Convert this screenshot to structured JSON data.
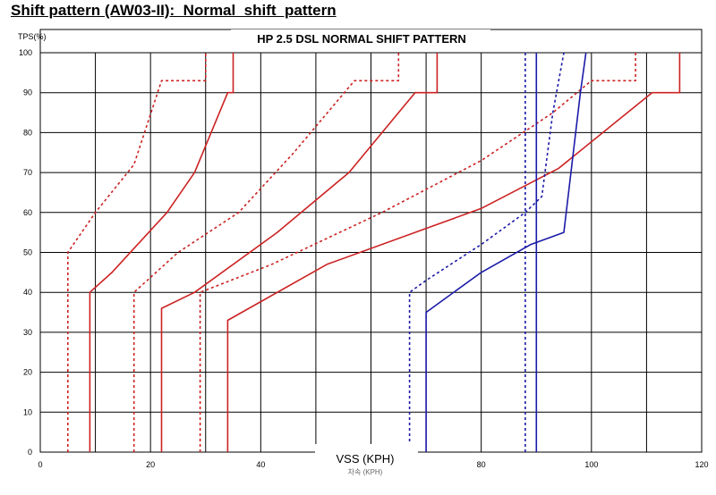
{
  "page": {
    "title": "Shift pattern (AW03-II):  Normal  shift  pattern"
  },
  "chart_data": {
    "type": "line",
    "title": "HP 2.5 DSL NORMAL SHIFT PATTERN",
    "xlabel": "VSS (KPH)",
    "xlabel_secondary": "차속 (KPH)",
    "ylabel": "TPS(%)",
    "xlim": [
      0,
      120
    ],
    "ylim": [
      0,
      100
    ],
    "x_ticks": [
      "0",
      "20",
      "40",
      "60",
      "80",
      "100",
      "120"
    ],
    "y_ticks": [
      "0",
      "10",
      "20",
      "30",
      "40",
      "50",
      "60",
      "70",
      "80",
      "90",
      "100"
    ],
    "grid": true,
    "colors": {
      "upshift": "#cc2222",
      "downshift": "#cc2222",
      "lockup": "#1a1aa8",
      "grid": "#000000"
    },
    "series": [
      {
        "color": "#cc2222",
        "dash": "dotted",
        "points": [
          [
            5,
            0
          ],
          [
            5,
            50
          ],
          [
            10,
            60
          ],
          [
            17,
            72
          ],
          [
            22,
            93
          ],
          [
            30,
            93
          ],
          [
            30,
            100
          ]
        ]
      },
      {
        "color": "#cc2222",
        "dash": "solid",
        "points": [
          [
            9,
            0
          ],
          [
            9,
            40
          ],
          [
            13,
            45
          ],
          [
            23,
            60
          ],
          [
            28,
            70
          ],
          [
            34,
            90
          ],
          [
            35,
            90
          ],
          [
            35,
            100
          ]
        ]
      },
      {
        "color": "#cc2222",
        "dash": "dotted",
        "points": [
          [
            17,
            0
          ],
          [
            17,
            40
          ],
          [
            25,
            50
          ],
          [
            36,
            60
          ],
          [
            46,
            75
          ],
          [
            57,
            93
          ],
          [
            65,
            93
          ],
          [
            65,
            100
          ]
        ]
      },
      {
        "color": "#cc2222",
        "dash": "solid",
        "points": [
          [
            22,
            0
          ],
          [
            22,
            36
          ],
          [
            28,
            40
          ],
          [
            43,
            55
          ],
          [
            56,
            70
          ],
          [
            68,
            90
          ],
          [
            72,
            90
          ],
          [
            72,
            100
          ]
        ]
      },
      {
        "color": "#cc2222",
        "dash": "dotted",
        "points": [
          [
            29,
            0
          ],
          [
            29,
            40
          ],
          [
            42,
            47
          ],
          [
            62,
            60
          ],
          [
            80,
            73
          ],
          [
            93,
            85
          ],
          [
            100,
            93
          ],
          [
            108,
            93
          ],
          [
            108,
            100
          ]
        ]
      },
      {
        "color": "#cc2222",
        "dash": "solid",
        "points": [
          [
            34,
            0
          ],
          [
            34,
            33
          ],
          [
            52,
            47
          ],
          [
            80,
            61
          ],
          [
            94,
            71
          ],
          [
            111,
            90
          ],
          [
            116,
            90
          ],
          [
            116,
            100
          ]
        ]
      },
      {
        "color": "#1a1aa8",
        "dash": "dotted",
        "points": [
          [
            67,
            0
          ],
          [
            67,
            40
          ],
          [
            70,
            43
          ],
          [
            80,
            52
          ],
          [
            88,
            60
          ],
          [
            91,
            64
          ],
          [
            93,
            85
          ],
          [
            95,
            100
          ]
        ]
      },
      {
        "color": "#1a1aa8",
        "dash": "solid",
        "points": [
          [
            70,
            0
          ],
          [
            70,
            35
          ],
          [
            73,
            38
          ],
          [
            80,
            45
          ],
          [
            89,
            52
          ],
          [
            95,
            55
          ],
          [
            98,
            90
          ],
          [
            99,
            100
          ]
        ]
      },
      {
        "color": "#1a1aa8",
        "dash": "dotted",
        "points": [
          [
            88,
            0
          ],
          [
            88,
            100
          ]
        ]
      },
      {
        "color": "#1a1aa8",
        "dash": "solid",
        "points": [
          [
            90,
            0
          ],
          [
            90,
            100
          ]
        ]
      }
    ]
  }
}
